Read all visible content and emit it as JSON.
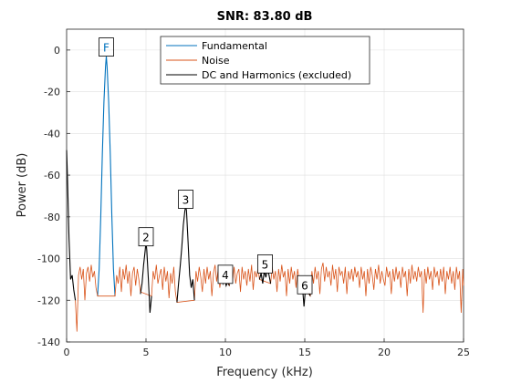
{
  "chart_data": {
    "type": "line",
    "title": "SNR:  83.80 dB",
    "xlabel": "Frequency (kHz)",
    "ylabel": "Power (dB)",
    "xlim": [
      0,
      25
    ],
    "ylim": [
      -140,
      10
    ],
    "xticks": [
      0,
      5,
      10,
      15,
      20,
      25
    ],
    "yticks": [
      0,
      -20,
      -40,
      -60,
      -80,
      -100,
      -120,
      -140
    ],
    "grid": true,
    "legend_position": "top-center",
    "legend": [
      "Fundamental",
      "Noise",
      "DC and Harmonics (excluded)"
    ],
    "series": [
      {
        "name": "Fundamental",
        "color": "#0072BD",
        "x": [
          1.95,
          2.05,
          2.15,
          2.25,
          2.35,
          2.45,
          2.5,
          2.55,
          2.65,
          2.75,
          2.85,
          2.95,
          3.05
        ],
        "y": [
          -118,
          -105,
          -80,
          -50,
          -25,
          -8,
          -3,
          -8,
          -25,
          -50,
          -80,
          -105,
          -118
        ]
      },
      {
        "name": "Noise",
        "color": "#D95319",
        "x": [
          0.55,
          0.65,
          0.75,
          0.85,
          0.95,
          1.05,
          1.15,
          1.25,
          1.35,
          1.45,
          1.55,
          1.65,
          1.75,
          1.85,
          1.95,
          3.05,
          3.15,
          3.25,
          3.35,
          3.45,
          3.55,
          3.65,
          3.75,
          3.85,
          3.95,
          4.05,
          4.15,
          4.25,
          4.35,
          4.45,
          4.55,
          4.65,
          5.35,
          5.45,
          5.55,
          5.65,
          5.75,
          5.85,
          5.95,
          6.05,
          6.15,
          6.25,
          6.35,
          6.45,
          6.55,
          6.65,
          6.75,
          6.85,
          6.95,
          8.05,
          8.15,
          8.25,
          8.35,
          8.45,
          8.55,
          8.65,
          8.75,
          8.85,
          8.95,
          9.05,
          9.15,
          9.25,
          9.35,
          9.45,
          9.55,
          9.65,
          9.75,
          10.25,
          10.35,
          10.45,
          10.55,
          10.65,
          10.75,
          10.85,
          10.95,
          11.05,
          11.15,
          11.25,
          11.35,
          11.45,
          11.55,
          11.65,
          11.75,
          11.85,
          11.95,
          12.05,
          12.15,
          12.85,
          12.95,
          13.05,
          13.15,
          13.25,
          13.35,
          13.45,
          13.55,
          13.65,
          13.75,
          13.85,
          13.95,
          14.05,
          14.15,
          14.25,
          14.35,
          14.45,
          14.55,
          14.65,
          15.35,
          15.45,
          15.55,
          15.65,
          15.75,
          15.85,
          15.95,
          16.05,
          16.15,
          16.25,
          16.35,
          16.45,
          16.55,
          16.65,
          16.75,
          16.85,
          16.95,
          17.05,
          17.15,
          17.25,
          17.35,
          17.45,
          17.55,
          17.65,
          17.75,
          17.85,
          17.95,
          18.05,
          18.15,
          18.25,
          18.35,
          18.45,
          18.55,
          18.65,
          18.75,
          18.85,
          18.95,
          19.05,
          19.15,
          19.25,
          19.35,
          19.45,
          19.55,
          19.65,
          19.75,
          19.85,
          19.95,
          20.05,
          20.15,
          20.25,
          20.35,
          20.45,
          20.55,
          20.65,
          20.75,
          20.85,
          20.95,
          21.05,
          21.15,
          21.25,
          21.35,
          21.45,
          21.55,
          21.65,
          21.75,
          21.85,
          21.95,
          22.05,
          22.15,
          22.25,
          22.35,
          22.45,
          22.55,
          22.65,
          22.75,
          22.85,
          22.95,
          23.05,
          23.15,
          23.25,
          23.35,
          23.45,
          23.55,
          23.65,
          23.75,
          23.85,
          23.95,
          24.05,
          24.15,
          24.25,
          24.35,
          24.45,
          24.55,
          24.65,
          24.75,
          24.85,
          24.95,
          25.0
        ],
        "y": [
          -120,
          -135,
          -108,
          -104,
          -110,
          -105,
          -120,
          -107,
          -104,
          -111,
          -103,
          -109,
          -106,
          -114,
          -118,
          -118,
          -108,
          -112,
          -104,
          -116,
          -105,
          -110,
          -103,
          -112,
          -106,
          -118,
          -107,
          -104,
          -113,
          -105,
          -110,
          -116,
          -118,
          -106,
          -110,
          -103,
          -112,
          -108,
          -105,
          -115,
          -104,
          -111,
          -106,
          -119,
          -107,
          -112,
          -104,
          -116,
          -121,
          -120,
          -106,
          -111,
          -104,
          -109,
          -116,
          -105,
          -112,
          -104,
          -110,
          -106,
          -118,
          -107,
          -103,
          -111,
          -105,
          -114,
          -108,
          -113,
          -106,
          -111,
          -104,
          -112,
          -107,
          -105,
          -116,
          -104,
          -110,
          -106,
          -113,
          -105,
          -111,
          -103,
          -115,
          -106,
          -109,
          -105,
          -110,
          -112,
          -104,
          -110,
          -106,
          -116,
          -105,
          -111,
          -103,
          -109,
          -106,
          -118,
          -105,
          -112,
          -104,
          -110,
          -106,
          -114,
          -105,
          -111,
          -118,
          -106,
          -112,
          -104,
          -110,
          -106,
          -117,
          -105,
          -102,
          -111,
          -104,
          -109,
          -106,
          -113,
          -103,
          -110,
          -105,
          -116,
          -104,
          -108,
          -106,
          -112,
          -104,
          -117,
          -106,
          -110,
          -105,
          -111,
          -104,
          -109,
          -106,
          -114,
          -104,
          -110,
          -106,
          -118,
          -105,
          -112,
          -104,
          -108,
          -115,
          -105,
          -110,
          -103,
          -112,
          -106,
          -110,
          -113,
          -104,
          -109,
          -106,
          -117,
          -105,
          -111,
          -104,
          -110,
          -106,
          -114,
          -104,
          -109,
          -106,
          -118,
          -105,
          -112,
          -103,
          -110,
          -106,
          -111,
          -104,
          -109,
          -106,
          -126,
          -105,
          -112,
          -104,
          -110,
          -106,
          -115,
          -104,
          -109,
          -106,
          -113,
          -105,
          -111,
          -104,
          -117,
          -106,
          -110,
          -104,
          -112,
          -106,
          -115,
          -104,
          -110,
          -106,
          -126,
          -105,
          -113
        ]
      },
      {
        "name": "DC and Harmonics (excluded)",
        "color": "#000000",
        "segments": [
          {
            "x": [
              0.0,
              0.05,
              0.15,
              0.25,
              0.35,
              0.45,
              0.55
            ],
            "y": [
              -48,
              -60,
              -90,
              -110,
              -108,
              -115,
              -120
            ]
          },
          {
            "x": [
              4.65,
              4.75,
              4.85,
              4.95,
              5.0,
              5.05,
              5.15,
              5.25,
              5.35
            ],
            "y": [
              -117,
              -112,
              -103,
              -96,
              -92,
              -96,
              -110,
              -126,
              -118
            ]
          },
          {
            "x": [
              6.95,
              7.05,
              7.15,
              7.25,
              7.35,
              7.45,
              7.5,
              7.55,
              7.65,
              7.75,
              7.85,
              7.95,
              8.05
            ],
            "y": [
              -121,
              -112,
              -104,
              -95,
              -84,
              -77,
              -75,
              -77,
              -92,
              -108,
              -114,
              -110,
              -120
            ]
          },
          {
            "x": [
              9.75,
              9.85,
              9.95,
              10.05,
              10.15,
              10.25
            ],
            "y": [
              -108,
              -112,
              -110,
              -113,
              -111,
              -113
            ]
          },
          {
            "x": [
              12.15,
              12.25,
              12.35,
              12.45,
              12.55,
              12.65,
              12.75,
              12.85
            ],
            "y": [
              -110,
              -107,
              -112,
              -106,
              -109,
              -105,
              -108,
              -112
            ]
          },
          {
            "x": [
              14.65,
              14.75,
              14.85,
              14.95,
              15.05,
              15.15,
              15.25,
              15.35
            ],
            "y": [
              -111,
              -115,
              -113,
              -123,
              -114,
              -112,
              -116,
              -118
            ]
          }
        ]
      }
    ],
    "annotations": [
      {
        "text": "F",
        "x": 2.5,
        "y": 1,
        "color": "#0072BD"
      },
      {
        "text": "2",
        "x": 5.0,
        "y": -90,
        "color": "#000000"
      },
      {
        "text": "3",
        "x": 7.5,
        "y": -72,
        "color": "#000000"
      },
      {
        "text": "4",
        "x": 10.0,
        "y": -108,
        "color": "#000000"
      },
      {
        "text": "5",
        "x": 12.5,
        "y": -103,
        "color": "#000000"
      },
      {
        "text": "6",
        "x": 15.0,
        "y": -113,
        "color": "#000000"
      }
    ]
  }
}
